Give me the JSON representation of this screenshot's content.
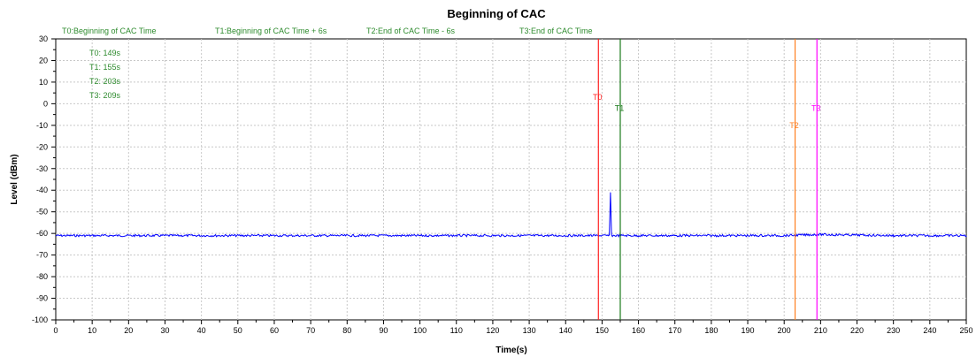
{
  "chart_data": {
    "type": "line",
    "title": "Beginning of CAC",
    "xlabel": "Time(s)",
    "ylabel": "Level (dBm)",
    "xlim": [
      0,
      250
    ],
    "ylim": [
      -100,
      30
    ],
    "x_ticks": [
      0,
      10,
      20,
      30,
      40,
      50,
      60,
      70,
      80,
      90,
      100,
      110,
      120,
      130,
      140,
      150,
      160,
      170,
      180,
      190,
      200,
      210,
      220,
      230,
      240,
      250
    ],
    "y_ticks": [
      30,
      20,
      10,
      0,
      -10,
      -20,
      -30,
      -40,
      -50,
      -60,
      -70,
      -80,
      -90,
      -100
    ],
    "grid": true,
    "legend": [
      {
        "label": "T0:Beginning of CAC Time",
        "color": "#2e8b2e"
      },
      {
        "label": "T1:Beginning of CAC Time + 6s",
        "color": "#2e8b2e"
      },
      {
        "label": "T2:End of CAC Time - 6s",
        "color": "#2e8b2e"
      },
      {
        "label": "T3:End of CAC Time",
        "color": "#2e8b2e"
      }
    ],
    "info_lines": [
      "T0: 149s",
      "T1: 155s",
      "T2: 203s",
      "T3: 209s"
    ],
    "series": [
      {
        "color": "#0000ff",
        "x": [
          0,
          40,
          80,
          120,
          149,
          152,
          152.3,
          152.6,
          160,
          200,
          209,
          230,
          250
        ],
        "y": [
          -61,
          -61,
          -61,
          -61,
          -61,
          -61,
          -41,
          -61,
          -61,
          -61,
          -60.5,
          -61,
          -61
        ],
        "noise_amplitude": 1
      }
    ],
    "markers": [
      {
        "label": "T0",
        "x": 149,
        "color": "#ff2020",
        "label_y": 3
      },
      {
        "label": "T1",
        "x": 155,
        "color": "#1a7a1a",
        "label_y": -2
      },
      {
        "label": "T2",
        "x": 203,
        "color": "#ff7f20",
        "label_y": -10
      },
      {
        "label": "T3",
        "x": 209,
        "color": "#ff00ff",
        "label_y": -2
      }
    ]
  }
}
